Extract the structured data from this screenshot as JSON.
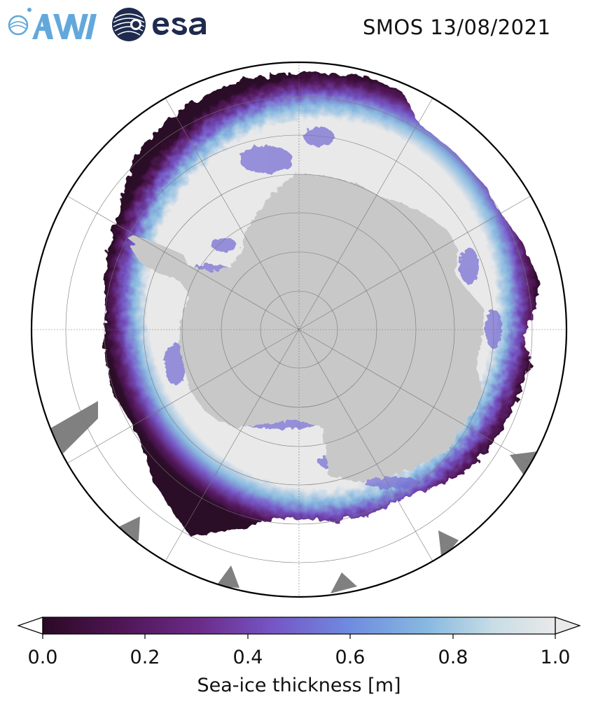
{
  "logos": {
    "left": "AWI",
    "right": "esa"
  },
  "title": "SMOS 13/08/2021",
  "map": {
    "projection": "south-polar-stereographic",
    "land_color": "#c8c8c8",
    "open_water_color": "#ffffff",
    "no_data_color": "#808080",
    "thick_ice_color": "#e9e9ea",
    "graticule": true
  },
  "colorbar": {
    "label": "Sea-ice thickness [m]",
    "ticks": [
      "0.0",
      "0.2",
      "0.4",
      "0.6",
      "0.8",
      "1.0"
    ],
    "range": [
      0.0,
      1.0
    ],
    "extend": "both",
    "colors": [
      "#2a0a25",
      "#4d1451",
      "#6a2a86",
      "#7656c6",
      "#6f8ce0",
      "#88b9e0",
      "#c8dde6",
      "#e9e9ea"
    ]
  }
}
